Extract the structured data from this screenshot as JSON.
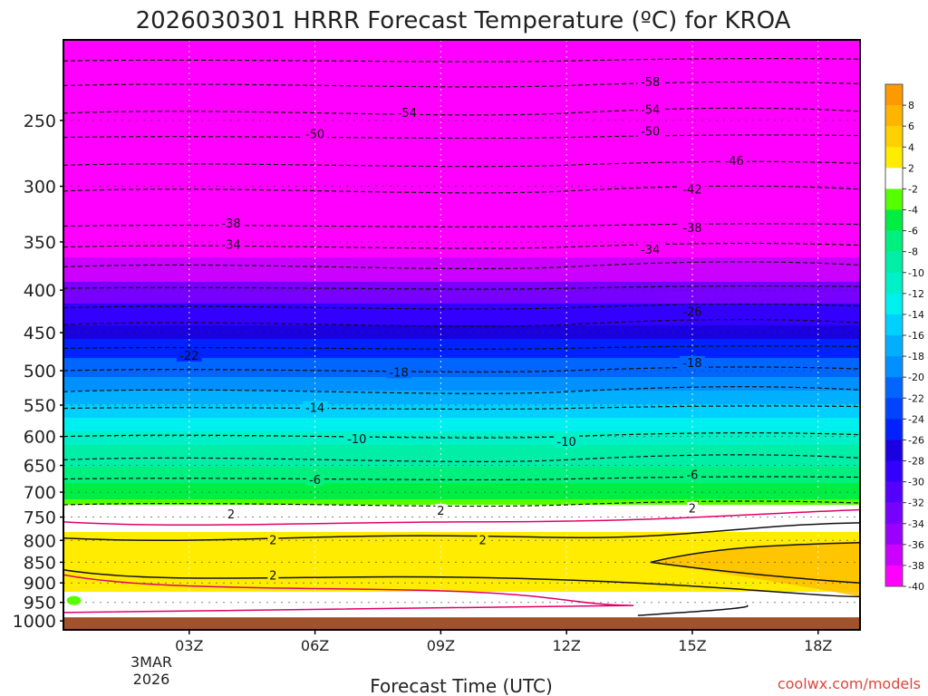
{
  "chart_data": {
    "type": "heatmap",
    "title": "2026030301 HRRR Forecast Temperature (ºC) for KROA",
    "xlabel": "Forecast Time (UTC)",
    "ylabel": "",
    "x_ticks": [
      "03Z",
      "06Z",
      "09Z",
      "12Z",
      "15Z",
      "18Z"
    ],
    "x_tick_hours": [
      3,
      6,
      9,
      12,
      15,
      18
    ],
    "x_range_hours": [
      0,
      19
    ],
    "x_date_lines": [
      "3MAR",
      "2026"
    ],
    "y_ticks": [
      250,
      300,
      350,
      400,
      450,
      500,
      550,
      600,
      650,
      700,
      750,
      800,
      850,
      900,
      950,
      1000
    ],
    "y_range_hpa": [
      200,
      1025
    ],
    "y_scale": "log-pressure",
    "ground_level_hpa": 990,
    "colorbar_ticks": [
      "8",
      "6",
      "4",
      "2",
      "-2",
      "-4",
      "-6",
      "-8",
      "-10",
      "-12",
      "-14",
      "-16",
      "-18",
      "-20",
      "-22",
      "-24",
      "-26",
      "-28",
      "-30",
      "-32",
      "-34",
      "-36",
      "-38",
      "-40"
    ],
    "colorbar_colors": [
      "#ff9900",
      "#ffb400",
      "#ffd000",
      "#ffec00",
      "#ffffff",
      "#55ff00",
      "#00ee44",
      "#00f080",
      "#00eea6",
      "#00f0c8",
      "#00f0f0",
      "#00d0ff",
      "#00b0ff",
      "#0090ff",
      "#0066ff",
      "#0044ff",
      "#0022ff",
      "#1a00e0",
      "#3300ff",
      "#5500ff",
      "#7700ff",
      "#9900ff",
      "#cc00ff",
      "#ff00ff"
    ],
    "temperature_profile": [
      {
        "level": 200,
        "temp": -58
      },
      {
        "level": 250,
        "temp": -54
      },
      {
        "level": 300,
        "temp": -46
      },
      {
        "level": 350,
        "temp": -38
      },
      {
        "level": 400,
        "temp": -32
      },
      {
        "level": 450,
        "temp": -26
      },
      {
        "level": 500,
        "temp": -20
      },
      {
        "level": 550,
        "temp": -15
      },
      {
        "level": 600,
        "temp": -10
      },
      {
        "level": 650,
        "temp": -7
      },
      {
        "level": 700,
        "temp": -4
      },
      {
        "level": 750,
        "temp": 0
      },
      {
        "level": 800,
        "temp": 3
      },
      {
        "level": 850,
        "temp": 4
      },
      {
        "level": 900,
        "temp": 3
      },
      {
        "level": 950,
        "temp": 1
      },
      {
        "level": 1000,
        "temp": 1
      }
    ],
    "contour_labels": [
      {
        "text": "-58",
        "hour": 14.0,
        "level": 225
      },
      {
        "text": "-54",
        "hour": 8.2,
        "level": 245
      },
      {
        "text": "-54",
        "hour": 14.0,
        "level": 243
      },
      {
        "text": "-50",
        "hour": 6.0,
        "level": 260
      },
      {
        "text": "-50",
        "hour": 14.0,
        "level": 258
      },
      {
        "text": "-46",
        "hour": 16.0,
        "level": 280
      },
      {
        "text": "-42",
        "hour": 15.0,
        "level": 303
      },
      {
        "text": "-38",
        "hour": 4.0,
        "level": 333
      },
      {
        "text": "-38",
        "hour": 15.0,
        "level": 337
      },
      {
        "text": "-34",
        "hour": 4.0,
        "level": 353
      },
      {
        "text": "-34",
        "hour": 14.0,
        "level": 358
      },
      {
        "text": "-26",
        "hour": 15.0,
        "level": 425
      },
      {
        "text": "-22",
        "hour": 3.0,
        "level": 480
      },
      {
        "text": "-18",
        "hour": 8.0,
        "level": 503
      },
      {
        "text": "-18",
        "hour": 15.0,
        "level": 490
      },
      {
        "text": "-14",
        "hour": 6.0,
        "level": 555
      },
      {
        "text": "-10",
        "hour": 7.0,
        "level": 605
      },
      {
        "text": "-10",
        "hour": 12.0,
        "level": 610
      },
      {
        "text": "-6",
        "hour": 6.0,
        "level": 677
      },
      {
        "text": "-6",
        "hour": 15.0,
        "level": 668
      },
      {
        "text": "2",
        "hour": 4.0,
        "level": 745
      },
      {
        "text": "2",
        "hour": 9.0,
        "level": 738
      },
      {
        "text": "2",
        "hour": 15.0,
        "level": 733
      },
      {
        "text": "2",
        "hour": 5.0,
        "level": 800
      },
      {
        "text": "2",
        "hour": 10.0,
        "level": 800
      },
      {
        "text": "2",
        "hour": 5.0,
        "level": 883
      }
    ]
  },
  "credit": "coolwx.com/models"
}
